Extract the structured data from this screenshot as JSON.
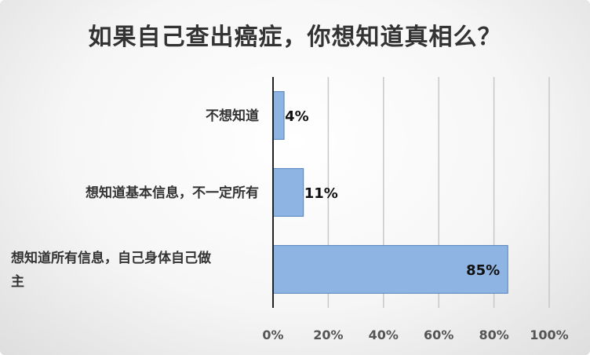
{
  "chart_data": {
    "type": "bar",
    "orientation": "horizontal",
    "title": "如果自己查出癌症，你想知道真相么？",
    "xlabel": "",
    "ylabel": "",
    "categories": [
      "不想知道",
      "想知道基本信息，不一定所有",
      "想知道所有信息，自己身体自己做主"
    ],
    "values": [
      4,
      11,
      85
    ],
    "data_labels": [
      "4%",
      "11%",
      "85%"
    ],
    "xlim": [
      0,
      100
    ],
    "x_ticks": [
      "0%",
      "20%",
      "40%",
      "60%",
      "80%",
      "100%"
    ],
    "grid": "vertical",
    "legend": "none",
    "bar_color": "#8eb4e3",
    "bar_edge_color": "#4f81bd"
  }
}
